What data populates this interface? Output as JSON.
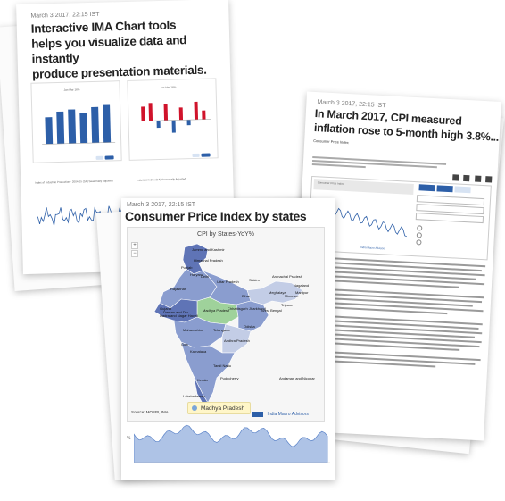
{
  "card_tools": {
    "date": "March 3 2017, 22:15 IST",
    "title_lines": [
      "Interactive IMA Chart tools",
      "helps you visualize data and instantly",
      "produce presentation materials."
    ],
    "bar_legend_a": "Jan-Mar 16%",
    "bar_legend_b": "Jan-Mar 16%",
    "line_title_a": "Index of Industrial Production - 2004-05 (SA) Seasonally Adjusted",
    "line_title_b": "Industrial Index (SA) Seasonally Adjusted"
  },
  "card_cpi": {
    "date": "March 3 2017, 22:15 IST",
    "title_lines": [
      "In March 2017, CPI measured",
      "inflation rose to 5-month high 3.8%..."
    ],
    "byline": "Consumer Price Index",
    "legend": "Consumer Price Index",
    "footer": "India Macro Advisors"
  },
  "card_states": {
    "date": "March 3 2017, 22:15 IST",
    "title": "Consumer Price Index by states",
    "map_title": "CPI by States-YoY%",
    "source": "Source: MOSPI, IMA",
    "brand": "India Macro Advisors",
    "selected_state": "Madhya Pradesh",
    "map_controls": [
      "+",
      "−"
    ],
    "line_y_label": "%",
    "state_labels": [
      {
        "name": "Jammu and Kashmir"
      },
      {
        "name": "Himachal Pradesh"
      },
      {
        "name": "Punjab"
      },
      {
        "name": "Haryana"
      },
      {
        "name": "Delhi"
      },
      {
        "name": "Uttar Pradesh"
      },
      {
        "name": "Rajasthan"
      },
      {
        "name": "Gujarat"
      },
      {
        "name": "Madhya Pradesh"
      },
      {
        "name": "Bihar"
      },
      {
        "name": "Sikkim"
      },
      {
        "name": "Arunachal Pradesh"
      },
      {
        "name": "Meghalaya"
      },
      {
        "name": "Jharkhand"
      },
      {
        "name": "West Bengal"
      },
      {
        "name": "Chhattisgarh"
      },
      {
        "name": "Odisha"
      },
      {
        "name": "Maharashtra"
      },
      {
        "name": "Telangana"
      },
      {
        "name": "Andhra Pradesh"
      },
      {
        "name": "Karnataka"
      },
      {
        "name": "Goa"
      },
      {
        "name": "Tamil Nadu"
      },
      {
        "name": "Kerala"
      },
      {
        "name": "Puducherry"
      },
      {
        "name": "Dadra and Nagar Haveli"
      },
      {
        "name": "Daman and Diu"
      },
      {
        "name": "Lakshadweep"
      },
      {
        "name": "Andaman and Nicobar"
      },
      {
        "name": "Mizoram"
      },
      {
        "name": "Tripura"
      },
      {
        "name": "Nagaland"
      },
      {
        "name": "Manipur"
      }
    ]
  },
  "colors": {
    "bar_blue": "#2d5fa8",
    "bar_red": "#d0132b",
    "map_base": "#8a9dcf",
    "map_light": "#c3cde6",
    "map_dark": "#5f74b6",
    "map_selected": "#9fd29b",
    "line_fill": "#aec3e6",
    "line_stroke": "#5b83c8"
  }
}
